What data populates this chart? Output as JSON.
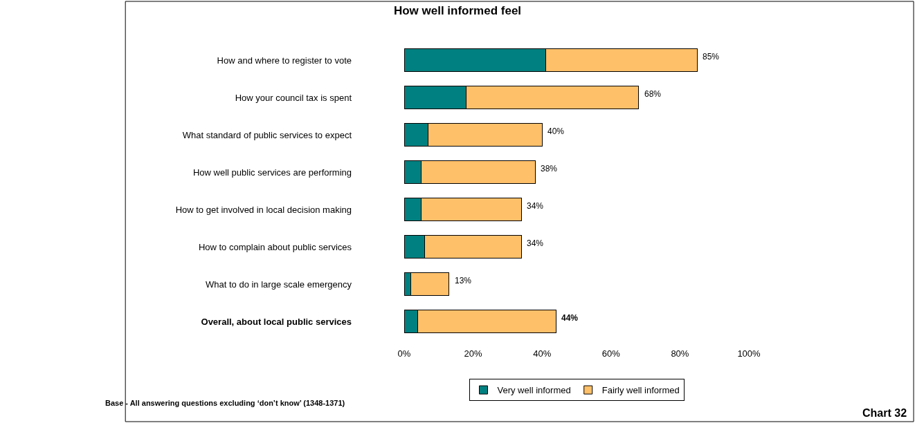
{
  "chart_data": {
    "type": "bar",
    "title": "How well informed feel",
    "orientation": "horizontal",
    "stacked": true,
    "categories": [
      "How and where to register to vote",
      "How your council tax is spent",
      "What standard of public services to expect",
      "How well public services are performing",
      "How to get involved in local decision making",
      "How to complain about public services",
      "What to do in large scale emergency",
      "Overall, about local public services"
    ],
    "series": [
      {
        "name": "Very well informed",
        "color": "#008080",
        "values": [
          41,
          18,
          7,
          5,
          5,
          6,
          2,
          4
        ]
      },
      {
        "name": "Fairly well informed",
        "color": "#ffc06a",
        "values": [
          44,
          50,
          33,
          33,
          29,
          28,
          11,
          40
        ]
      }
    ],
    "totals": [
      "85%",
      "68%",
      "40%",
      "38%",
      "34%",
      "34%",
      "13%",
      "44%"
    ],
    "xlim": [
      0,
      100
    ],
    "xticks": [
      {
        "value": 0,
        "label": "0%"
      },
      {
        "value": 20,
        "label": "20%"
      },
      {
        "value": 40,
        "label": "40%"
      },
      {
        "value": 60,
        "label": "60%"
      },
      {
        "value": 80,
        "label": "80%"
      },
      {
        "value": 100,
        "label": "100%"
      }
    ],
    "legend": "bottom",
    "annotations": [
      "Base - All answering questions excluding ‘don’t know’ (1348-1371)",
      "Chart 32"
    ]
  }
}
